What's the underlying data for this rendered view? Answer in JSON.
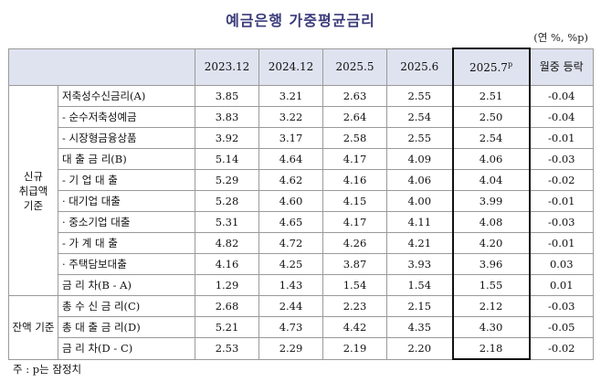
{
  "title": "예금은행 가중평균금리",
  "unit": "(연 %, %p)",
  "columns": [
    "2023.12",
    "2024.12",
    "2025.5",
    "2025.6",
    "2025.7",
    "월중 등락"
  ],
  "highlight_sup": "p",
  "groups": {
    "new": "신규 취급액 기준",
    "balance": "잔액 기준"
  },
  "rows": [
    {
      "label": "저축성수신금리(A)",
      "values": [
        "3.85",
        "3.21",
        "2.63",
        "2.55",
        "2.51",
        "-0.04"
      ]
    },
    {
      "label": "- 순수저축성예금",
      "values": [
        "3.83",
        "3.22",
        "2.64",
        "2.54",
        "2.50",
        "-0.04"
      ]
    },
    {
      "label": "- 시장형금융상품",
      "values": [
        "3.92",
        "3.17",
        "2.58",
        "2.55",
        "2.54",
        "-0.01"
      ]
    },
    {
      "label": "대 출 금 리(B)",
      "values": [
        "5.14",
        "4.64",
        "4.17",
        "4.09",
        "4.06",
        "-0.03"
      ]
    },
    {
      "label": "- 기 업 대 출",
      "values": [
        "5.29",
        "4.62",
        "4.16",
        "4.06",
        "4.04",
        "-0.02"
      ]
    },
    {
      "label": "· 대기업 대출",
      "values": [
        "5.28",
        "4.60",
        "4.15",
        "4.00",
        "3.99",
        "-0.01"
      ]
    },
    {
      "label": "· 중소기업 대출",
      "values": [
        "5.31",
        "4.65",
        "4.17",
        "4.11",
        "4.08",
        "-0.03"
      ]
    },
    {
      "label": "- 가 계 대 출",
      "values": [
        "4.82",
        "4.72",
        "4.26",
        "4.21",
        "4.20",
        "-0.01"
      ]
    },
    {
      "label": "· 주택담보대출",
      "values": [
        "4.16",
        "4.25",
        "3.87",
        "3.93",
        "3.96",
        "0.03"
      ]
    },
    {
      "label": "금 리 차(B - A)",
      "values": [
        "1.29",
        "1.43",
        "1.54",
        "1.54",
        "1.55",
        "0.01"
      ]
    },
    {
      "label": "총 수 신 금 리(C)",
      "values": [
        "2.68",
        "2.44",
        "2.23",
        "2.15",
        "2.12",
        "-0.03"
      ]
    },
    {
      "label": "총 대 출 금 리(D)",
      "values": [
        "5.21",
        "4.73",
        "4.42",
        "4.35",
        "4.30",
        "-0.05"
      ]
    },
    {
      "label": "금 리 차(D - C)",
      "values": [
        "2.53",
        "2.29",
        "2.19",
        "2.20",
        "2.18",
        "-0.02"
      ]
    }
  ],
  "footnote": "주 : p는 잠정치"
}
